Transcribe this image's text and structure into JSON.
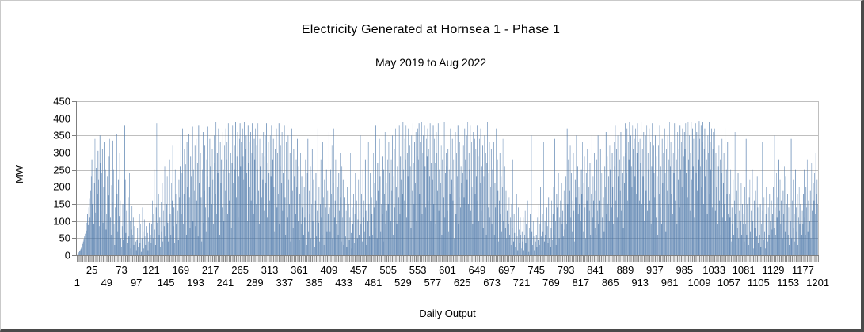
{
  "frame": {
    "background": "#ffffff"
  },
  "chart_data": {
    "type": "bar",
    "title": "Electricity Generated at Hornsea 1 - Phase 1",
    "subtitle": "May 2019 to Aug 2022",
    "xlabel": "Daily Output",
    "ylabel": "MW",
    "ylim": [
      0,
      450
    ],
    "ytick_step": 50,
    "yticks": [
      450,
      400,
      350,
      300,
      250,
      200,
      150,
      100,
      50,
      0
    ],
    "xticks_upper_row": [
      25,
      73,
      121,
      169,
      217,
      265,
      313,
      361,
      409,
      457,
      505,
      553,
      601,
      649,
      697,
      745,
      793,
      841,
      889,
      937,
      985,
      1033,
      1081,
      1129,
      1177
    ],
    "xticks_lower_row": [
      1,
      49,
      97,
      145,
      193,
      241,
      289,
      337,
      385,
      433,
      481,
      529,
      577,
      625,
      673,
      721,
      769,
      817,
      865,
      913,
      961,
      1009,
      1057,
      1105,
      1153,
      1201
    ],
    "x_count": 1201,
    "grid_on": true,
    "legend": "none",
    "bar_color": "#4a76a8",
    "grid_color": "#bfbfbf",
    "axis_color": "#7f7f7f",
    "values": [
      2,
      4,
      6,
      9,
      12,
      15,
      18,
      22,
      27,
      33,
      40,
      48,
      55,
      63,
      58,
      72,
      95,
      120,
      88,
      140,
      165,
      110,
      190,
      230,
      280,
      150,
      320,
      90,
      210,
      340,
      125,
      255,
      60,
      180,
      305,
      220,
      85,
      350,
      270,
      130,
      240,
      310,
      95,
      200,
      330,
      160,
      250,
      75,
      120,
      230,
      45,
      175,
      290,
      340,
      110,
      60,
      205,
      155,
      335,
      250,
      90,
      30,
      140,
      265,
      355,
      180,
      70,
      220,
      115,
      300,
      160,
      50,
      25,
      85,
      150,
      45,
      110,
      380,
      220,
      65,
      130,
      35,
      90,
      170,
      55,
      240,
      100,
      20,
      75,
      145,
      60,
      110,
      30,
      85,
      190,
      40,
      15,
      45,
      80,
      25,
      60,
      120,
      35,
      90,
      10,
      50,
      140,
      70,
      20,
      105,
      55,
      30,
      85,
      200,
      65,
      15,
      40,
      95,
      25,
      60,
      35,
      90,
      160,
      50,
      120,
      250,
      75,
      30,
      140,
      385,
      95,
      45,
      180,
      60,
      110,
      25,
      155,
      70,
      210,
      40,
      130,
      85,
      260,
      55,
      70,
      150,
      230,
      95,
      40,
      190,
      280,
      120,
      60,
      210,
      160,
      320,
      85,
      140,
      35,
      250,
      180,
      90,
      300,
      130,
      45,
      220,
      170,
      260,
      350,
      120,
      240,
      370,
      90,
      180,
      310,
      150,
      265,
      60,
      330,
      200,
      110,
      355,
      170,
      80,
      290,
      230,
      140,
      375,
      100,
      250,
      190,
      320,
      85,
      340,
      160,
      270,
      55,
      380,
      210,
      130,
      300,
      170,
      40,
      250,
      360,
      95,
      190,
      320,
      140,
      70,
      280,
      230,
      375,
      110,
      200,
      340,
      260,
      380,
      150,
      310,
      220,
      90,
      350,
      270,
      180,
      390,
      120,
      300,
      240,
      370,
      160,
      60,
      330,
      210,
      280,
      140,
      360,
      250,
      100,
      320,
      190,
      370,
      280,
      330,
      120,
      385,
      240,
      160,
      350,
      300,
      80,
      270,
      380,
      210,
      140,
      320,
      250,
      390,
      170,
      290,
      360,
      110,
      230,
      340,
      385,
      260,
      330,
      180,
      370,
      290,
      220,
      390,
      140,
      310,
      350,
      240,
      100,
      380,
      270,
      330,
      200,
      360,
      160,
      300,
      385,
      230,
      120,
      340,
      280,
      370,
      150,
      320,
      250,
      385,
      190,
      90,
      340,
      260,
      380,
      170,
      300,
      220,
      360,
      130,
      290,
      350,
      210,
      385,
      110,
      270,
      330,
      240,
      160,
      350,
      230,
      380,
      120,
      280,
      340,
      200,
      70,
      310,
      250,
      370,
      140,
      300,
      180,
      385,
      90,
      260,
      320,
      210,
      360,
      130,
      240,
      290,
      380,
      170,
      60,
      330,
      270,
      110,
      350,
      220,
      150,
      300,
      40,
      250,
      370,
      190,
      80,
      310,
      230,
      360,
      120,
      280,
      200,
      340,
      100,
      260,
      45,
      180,
      300,
      90,
      230,
      140,
      370,
      60,
      200,
      110,
      280,
      160,
      30,
      240,
      340,
      70,
      190,
      120,
      260,
      50,
      150,
      310,
      100,
      220,
      80,
      25,
      160,
      240,
      55,
      130,
      370,
      95,
      200,
      40,
      150,
      280,
      110,
      60,
      330,
      170,
      30,
      220,
      90,
      140,
      250,
      70,
      190,
      120,
      360,
      140,
      70,
      250,
      180,
      320,
      50,
      210,
      370,
      110,
      160,
      280,
      90,
      340,
      200,
      60,
      240,
      130,
      300,
      170,
      40,
      260,
      110,
      220,
      30,
      100,
      170,
      55,
      130,
      25,
      200,
      80,
      150,
      45,
      110,
      300,
      65,
      20,
      140,
      90,
      180,
      35,
      120,
      240,
      70,
      160,
      50,
      105,
      220,
      60,
      130,
      350,
      90,
      180,
      40,
      250,
      110,
      160,
      70,
      280,
      130,
      30,
      200,
      100,
      330,
      150,
      55,
      240,
      85,
      170,
      120,
      60,
      300,
      140,
      210,
      80,
      380,
      160,
      50,
      270,
      190,
      110,
      340,
      230,
      70,
      150,
      290,
      120,
      40,
      250,
      180,
      360,
      90,
      210,
      130,
      280,
      150,
      330,
      240,
      380,
      100,
      280,
      190,
      350,
      60,
      230,
      310,
      140,
      370,
      200,
      90,
      260,
      330,
      170,
      380,
      120,
      290,
      220,
      350,
      180,
      390,
      250,
      160,
      340,
      280,
      380,
      110,
      300,
      230,
      370,
      140,
      320,
      260,
      80,
      350,
      190,
      385,
      270,
      150,
      330,
      210,
      360,
      100,
      290,
      370,
      280,
      385,
      180,
      330,
      240,
      390,
      120,
      300,
      350,
      200,
      380,
      260,
      140,
      340,
      290,
      370,
      160,
      310,
      230,
      385,
      100,
      270,
      330,
      220,
      380,
      150,
      340,
      270,
      90,
      360,
      300,
      190,
      385,
      130,
      250,
      370,
      210,
      320,
      60,
      280,
      350,
      170,
      390,
      110,
      240,
      300,
      260,
      130,
      310,
      70,
      250,
      180,
      370,
      100,
      220,
      340,
      160,
      280,
      50,
      200,
      360,
      120,
      300,
      230,
      380,
      90,
      170,
      330,
      140,
      260,
      210,
      385,
      240,
      320,
      170,
      370,
      280,
      110,
      350,
      220,
      390,
      150,
      300,
      250,
      380,
      130,
      330,
      200,
      90,
      360,
      270,
      340,
      180,
      310,
      230,
      380,
      160,
      290,
      100,
      340,
      210,
      370,
      130,
      260,
      320,
      80,
      230,
      350,
      180,
      300,
      60,
      270,
      390,
      140,
      240,
      330,
      110,
      200,
      310,
      90,
      250,
      170,
      330,
      60,
      210,
      140,
      370,
      110,
      280,
      190,
      40,
      160,
      300,
      120,
      230,
      70,
      200,
      340,
      100,
      150,
      260,
      80,
      190,
      50,
      130,
      20,
      90,
      170,
      60,
      110,
      30,
      150,
      80,
      280,
      40,
      120,
      65,
      25,
      100,
      180,
      55,
      15,
      140,
      75,
      35,
      110,
      60,
      20,
      70,
      40,
      110,
      15,
      60,
      130,
      35,
      90,
      25,
      160,
      50,
      10,
      80,
      120,
      45,
      350,
      70,
      30,
      100,
      55,
      15,
      85,
      40,
      60,
      25,
      110,
      45,
      150,
      30,
      90,
      200,
      55,
      15,
      120,
      70,
      330,
      40,
      100,
      60,
      20,
      140,
      85,
      35,
      170,
      50,
      110,
      25,
      80,
      160,
      45,
      120,
      200,
      60,
      340,
      100,
      30,
      180,
      140,
      70,
      240,
      50,
      110,
      160,
      35,
      210,
      90,
      130,
      55,
      190,
      75,
      150,
      230,
      90,
      370,
      150,
      280,
      60,
      190,
      320,
      110,
      240,
      70,
      160,
      300,
      130,
      40,
      220,
      170,
      350,
      90,
      260,
      120,
      200,
      150,
      280,
      100,
      250,
      180,
      330,
      70,
      210,
      290,
      140,
      50,
      240,
      160,
      310,
      90,
      200,
      130,
      270,
      60,
      180,
      350,
      110,
      230,
      160,
      300,
      80,
      190,
      60,
      280,
      130,
      350,
      90,
      220,
      160,
      310,
      50,
      240,
      110,
      330,
      170,
      70,
      260,
      200,
      360,
      120,
      290,
      150,
      230,
      100,
      320,
      250,
      370,
      140,
      300,
      200,
      90,
      330,
      260,
      380,
      160,
      310,
      110,
      350,
      230,
      60,
      280,
      190,
      360,
      130,
      320,
      240,
      80,
      290,
      210,
      385,
      300,
      240,
      370,
      160,
      330,
      280,
      390,
      120,
      350,
      260,
      200,
      380,
      310,
      140,
      340,
      230,
      370,
      180,
      300,
      385,
      250,
      330,
      160,
      340,
      270,
      390,
      150,
      310,
      230,
      360,
      100,
      280,
      350,
      190,
      380,
      130,
      300,
      250,
      370,
      160,
      330,
      90,
      260,
      385,
      210,
      320,
      240,
      170,
      350,
      110,
      290,
      230,
      60,
      320,
      180,
      380,
      140,
      260,
      90,
      340,
      210,
      300,
      120,
      370,
      240,
      70,
      310,
      190,
      350,
      150,
      280,
      390,
      260,
      330,
      180,
      370,
      120,
      300,
      240,
      385,
      160,
      340,
      280,
      90,
      360,
      220,
      310,
      140,
      380,
      250,
      330,
      200,
      370,
      110,
      290,
      360,
      310,
      385,
      240,
      330,
      170,
      390,
      280,
      350,
      130,
      300,
      390,
      220,
      370,
      260,
      340,
      110,
      320,
      385,
      240,
      360,
      190,
      330,
      280,
      392,
      340,
      260,
      380,
      200,
      330,
      390,
      150,
      310,
      370,
      230,
      385,
      280,
      120,
      350,
      300,
      390,
      180,
      330,
      250,
      370,
      140,
      310,
      360,
      230,
      370,
      130,
      300,
      200,
      350,
      90,
      260,
      320,
      160,
      280,
      60,
      240,
      340,
      110,
      210,
      300,
      150,
      370,
      100,
      250,
      180,
      330,
      120,
      70,
      180,
      110,
      250,
      40,
      140,
      90,
      220,
      60,
      160,
      360,
      120,
      30,
      190,
      80,
      240,
      50,
      130,
      170,
      100,
      210,
      60,
      150,
      90,
      120,
      40,
      200,
      90,
      340,
      60,
      150,
      110,
      30,
      170,
      220,
      70,
      130,
      50,
      250,
      100,
      20,
      160,
      80,
      190,
      120,
      55,
      230,
      140,
      35,
      110,
      60,
      150,
      25,
      90,
      330,
      130,
      45,
      170,
      70,
      20,
      120,
      200,
      85,
      40,
      140,
      60,
      180,
      100,
      30,
      160,
      75,
      120,
      200,
      80,
      350,
      140,
      60,
      240,
      110,
      170,
      40,
      280,
      130,
      220,
      90,
      160,
      310,
      50,
      190,
      120,
      260,
      70,
      230,
      100,
      150,
      180,
      60,
      140,
      30,
      190,
      100,
      340,
      50,
      160,
      220,
      80,
      120,
      40,
      250,
      140,
      70,
      180,
      30,
      110,
      200,
      90,
      150,
      260,
      60,
      130,
      90,
      180,
      250,
      110,
      60,
      200,
      140,
      280,
      70,
      160,
      230,
      100,
      190,
      50,
      270,
      130,
      80,
      210,
      160,
      240,
      120,
      300,
      180,
      220,
      150
    ]
  }
}
